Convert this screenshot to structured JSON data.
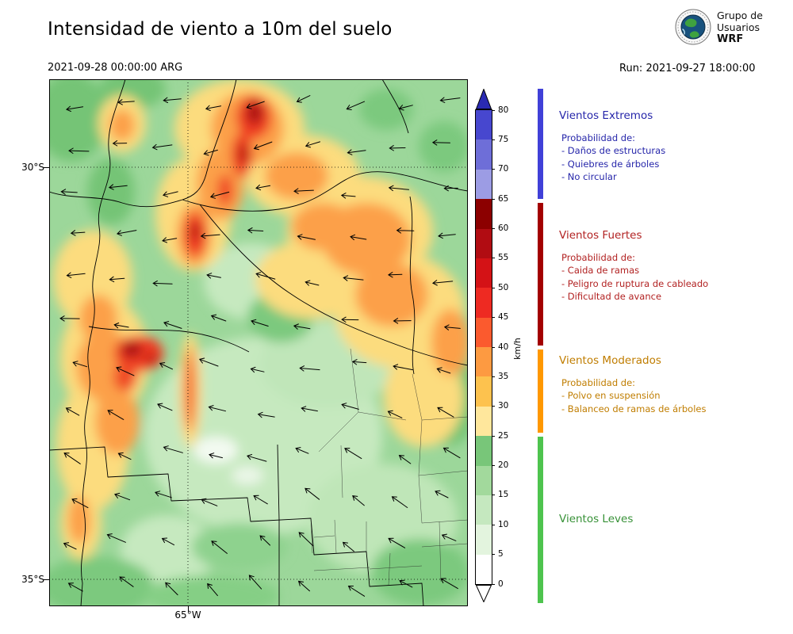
{
  "header": {
    "title": "Intensidad de viento a 10m del suelo",
    "valid_time": "2021-09-28 00:00:00 ARG",
    "run_label": "Run: 2021-09-27 18:00:00"
  },
  "logo": {
    "org_line1": "Grupo de",
    "org_line2": "Usuarios",
    "org_line3": "WRF"
  },
  "map": {
    "lat_ticks": [
      "30°S",
      "35°S"
    ],
    "lon_ticks": [
      "65°W"
    ]
  },
  "colorbar": {
    "unit": "km/h",
    "tick_values": [
      0,
      5,
      10,
      15,
      20,
      25,
      30,
      35,
      40,
      45,
      50,
      55,
      60,
      65,
      70,
      75,
      80
    ],
    "segment_colors": [
      "#ffffff",
      "#e3f4de",
      "#c5e8bf",
      "#a2d99c",
      "#78c679",
      "#ffe79c",
      "#fdc24e",
      "#fd9a41",
      "#fb5a2e",
      "#ee2a22",
      "#d41216",
      "#b10c12",
      "#8c0000",
      "#9c9ce4",
      "#6e6ed8",
      "#4747cf"
    ],
    "over_color": "#2a2ab2",
    "under_color": "#ffffff"
  },
  "legend": {
    "sections": [
      {
        "title": "Vientos Extremos",
        "color": "#2626aa",
        "bar_color": "#4040d8",
        "lines": [
          "Probabilidad de:",
          "- Daños de estructuras",
          "- Quiebres de árboles",
          "- No circular"
        ]
      },
      {
        "title": "Vientos Fuertes",
        "color": "#b22222",
        "bar_color": "#a30000",
        "lines": [
          "Probabilidad de:",
          "- Caida de ramas",
          "- Peligro de ruptura de cableado",
          "- Dificultad de avance"
        ]
      },
      {
        "title": "Vientos Moderados",
        "color": "#c07d00",
        "bar_color": "#ff9800",
        "lines": [
          "Probabilidad de:",
          "- Polvo en suspensión",
          "- Balanceo de ramas de árboles"
        ]
      },
      {
        "title": "Vientos Leves",
        "color": "#379137",
        "bar_color": "#4ec44e",
        "lines": []
      }
    ]
  },
  "chart_data": {
    "type": "heatmap",
    "title": "Intensidad de viento a 10m del suelo",
    "valid_time": "2021-09-28 00:00:00 ARG",
    "run": "2021-09-27 18:00:00",
    "unit": "km/h",
    "colorbar_ticks": [
      0,
      5,
      10,
      15,
      20,
      25,
      30,
      35,
      40,
      45,
      50,
      55,
      60,
      65,
      70,
      75,
      80
    ],
    "colorbar_range": [
      0,
      80
    ],
    "lat_gridlines": [
      "30°S",
      "35°S"
    ],
    "lon_gridlines": [
      "65°W"
    ],
    "categories": [
      {
        "name": "Vientos Leves",
        "range_kmh": [
          0,
          25
        ]
      },
      {
        "name": "Vientos Moderados",
        "range_kmh": [
          25,
          40
        ]
      },
      {
        "name": "Vientos Fuertes",
        "range_kmh": [
          40,
          65
        ]
      },
      {
        "name": "Vientos Extremos",
        "range_kmh": [
          65,
          80
        ]
      }
    ],
    "features": "Filled wind-speed contours over central Argentina with wind-direction arrows; strong-wind cores NW and center of domain, light winds SE"
  }
}
